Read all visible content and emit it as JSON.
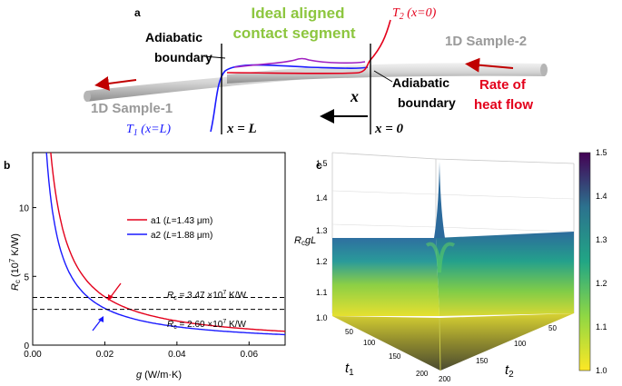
{
  "panel_a": {
    "letter": "a",
    "title_line1": "Ideal aligned",
    "title_line2": "contact segment",
    "t2_label": "T",
    "t2_sub": "2",
    "t2_arg": " (x=0)",
    "sample2": "1D Sample-2",
    "sample1": "1D Sample-1",
    "adiabatic_left_1": "Adiabatic",
    "adiabatic_left_2": "boundary",
    "adiabatic_right_1": "Adiabatic",
    "adiabatic_right_2": "boundary",
    "rate_1": "Rate of",
    "rate_2": "heat flow",
    "t1_label": "T",
    "t1_sub": "1",
    "t1_arg": " (x=L)",
    "x_arrow_label": "x",
    "x_eq_L": "x = L",
    "x_eq_0": "x = 0",
    "colors": {
      "title": "#8dc63f",
      "red": "#e3001b",
      "blue": "#1a1aff",
      "purple": "#a020c0",
      "gray": "#9a9a9a"
    }
  },
  "panel_b": {
    "letter": "b",
    "ylabel_main": "R",
    "ylabel_sub": "c",
    "ylabel_unit_pre": " (10",
    "ylabel_exp": "7",
    "ylabel_unit_post": " K/W)",
    "xlabel_main": "g",
    "xlabel_unit": " (W/m·K)",
    "hline1_label_pre": "R",
    "hline1_label_sub": "c",
    "hline1_label_val": " = 3.47 ×10",
    "hline1_label_exp": "7",
    "hline1_label_unit": " K/W",
    "hline2_label_pre": "R",
    "hline2_label_sub": "c",
    "hline2_label_val": " = 2.60 ×10",
    "hline2_label_exp": "7",
    "hline2_label_unit": " K/W"
  },
  "chart_data": [
    {
      "type": "line",
      "x_ticks": [
        "0.00",
        "0.02",
        "0.04",
        "0.06"
      ],
      "y_ticks": [
        "0",
        "5",
        "10"
      ],
      "xlim": [
        0,
        0.07
      ],
      "ylim": [
        0,
        14
      ],
      "series": [
        {
          "name": "a1",
          "legend_L": "L",
          "legend_value": "=1.43 μm)",
          "color": "#e3001b",
          "A": 0.0703
        },
        {
          "name": "a2",
          "legend_L": "L",
          "legend_value": "=1.88 μm)",
          "color": "#1a1aff",
          "A": 0.0535
        }
      ],
      "hlines": [
        3.47,
        2.6
      ]
    },
    {
      "type": "heatmap",
      "letter": "c",
      "zlabel": "R",
      "zlabel_sub": "c",
      "zlabel_rest": "gL",
      "z_ticks": [
        "1.0",
        "1.1",
        "1.2",
        "1.3",
        "1.4",
        "1.5"
      ],
      "t1_label": "t",
      "t1_sub": "1",
      "t2_label": "t",
      "t2_sub": "2",
      "t1_ticks": [
        "50",
        "100",
        "150",
        "200"
      ],
      "t2_ticks": [
        "50",
        "100",
        "150",
        "200"
      ],
      "colorbar_ticks": [
        "1.5",
        "1.4",
        "1.3",
        "1.2",
        "1.1",
        "1.0"
      ],
      "colorbar_range": [
        1.0,
        1.5
      ]
    }
  ]
}
